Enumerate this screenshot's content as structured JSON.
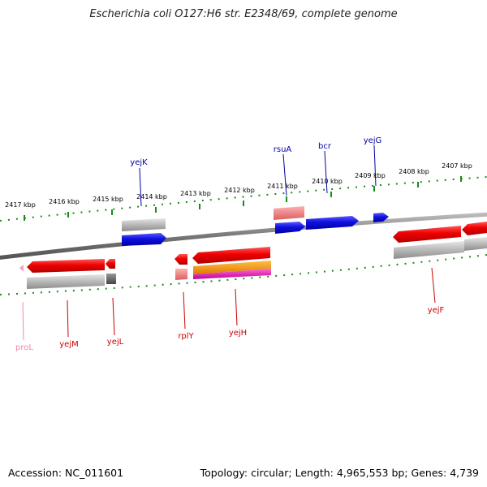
{
  "title": "Escherichia coli O127:H6 str. E2348/69, complete genome",
  "footer": {
    "accession": "Accession: NC_011601",
    "summary": "Topology: circular; Length: 4,965,553 bp; Genes: 4,739"
  },
  "colors": {
    "forward_gene": "#1010e0",
    "reverse_gene": "#e80000",
    "gene_label_forward": "#0000aa",
    "gene_label_reverse": "#cc0000",
    "pseudo_label": "#f08aa8",
    "tick": "#1a8a1a",
    "backbone": "#777777"
  },
  "kbp_ticks": [
    {
      "label": "2417 kbp"
    },
    {
      "label": "2416 kbp"
    },
    {
      "label": "2415 kbp"
    },
    {
      "label": "2414 kbp"
    },
    {
      "label": "2413 kbp"
    },
    {
      "label": "2412 kbp"
    },
    {
      "label": "2411 kbp"
    },
    {
      "label": "2410 kbp"
    },
    {
      "label": "2409 kbp"
    },
    {
      "label": "2408 kbp"
    },
    {
      "label": "2407 kbp"
    }
  ],
  "gene_labels": [
    {
      "name": "yejK",
      "strand": "forward"
    },
    {
      "name": "rsuA",
      "strand": "forward"
    },
    {
      "name": "bcr",
      "strand": "forward"
    },
    {
      "name": "yejG",
      "strand": "forward"
    },
    {
      "name": "proL",
      "strand": "pseudo"
    },
    {
      "name": "yejM",
      "strand": "reverse"
    },
    {
      "name": "yejL",
      "strand": "reverse"
    },
    {
      "name": "rplY",
      "strand": "reverse"
    },
    {
      "name": "yejH",
      "strand": "reverse"
    },
    {
      "name": "yejF",
      "strand": "reverse"
    }
  ]
}
